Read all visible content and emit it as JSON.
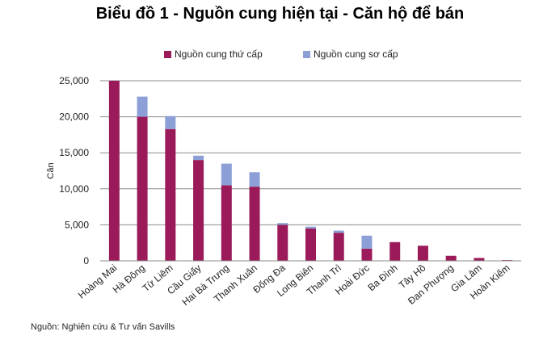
{
  "chart_data": {
    "type": "bar",
    "stacked": true,
    "title": "Biểu đồ 1 - Nguồn cung hiện tại - Căn hộ để bán",
    "ylabel": "Căn",
    "xlabel": "",
    "ylim": [
      0,
      25000
    ],
    "yticks": [
      "0",
      "5,000",
      "10,000",
      "15,000",
      "20,000",
      "25,000"
    ],
    "ytick_values": [
      0,
      5000,
      10000,
      15000,
      20000,
      25000
    ],
    "grid": true,
    "legend_position": "top-center",
    "categories": [
      "Hoàng Mai",
      "Hà Đông",
      "Từ Liêm",
      "Cầu Giấy",
      "Hai Bà Trưng",
      "Thanh Xuân",
      "Đống Đa",
      "Long Biên",
      "Thanh Trì",
      "Hoài Đức",
      "Ba Đình",
      "Tây Hồ",
      "Đan Phượng",
      "Gia Lâm",
      "Hoàn Kiếm"
    ],
    "series": [
      {
        "name": "Nguồn cung thứ cấp",
        "color": "#9b1b5a",
        "values": [
          25000,
          20000,
          18300,
          14000,
          10500,
          10300,
          5000,
          4500,
          3900,
          1700,
          2600,
          2100,
          700,
          400,
          100
        ]
      },
      {
        "name": "Nguồn cung sơ cấp",
        "color": "#8ca0d7",
        "values": [
          0,
          2800,
          1800,
          600,
          3000,
          2000,
          250,
          250,
          300,
          1800,
          0,
          0,
          0,
          0,
          0
        ]
      }
    ],
    "source": "Nguồn: Nghiên cứu & Tư vấn Savills"
  }
}
